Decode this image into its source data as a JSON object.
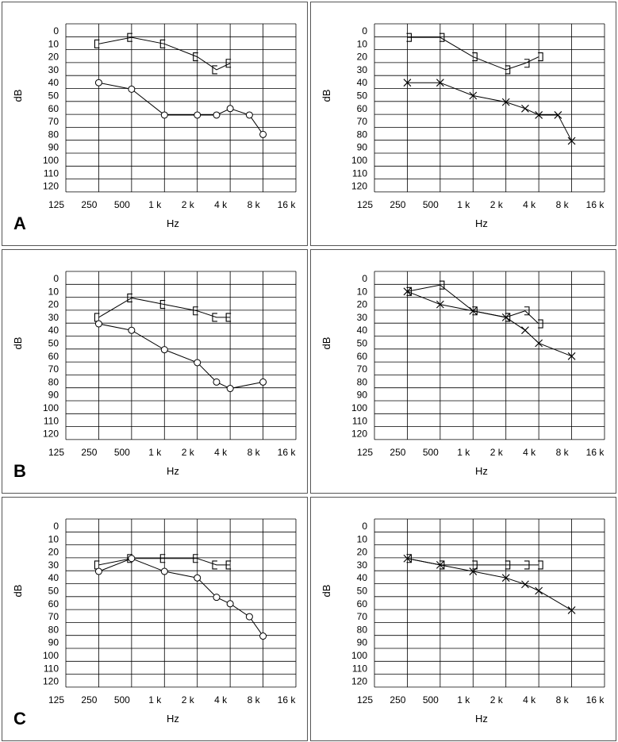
{
  "rows": [
    {
      "label": "A"
    },
    {
      "label": "B"
    },
    {
      "label": "C"
    }
  ],
  "chart_data": [
    {
      "type": "line",
      "xlabel": "Hz",
      "ylabel": "dB",
      "x_ticks": [
        "125",
        "250",
        "500",
        "1 k",
        "2 k",
        "4 k",
        "8 k",
        "16 k"
      ],
      "y_ticks": [
        "0",
        "10",
        "20",
        "30",
        "40",
        "50",
        "60",
        "70",
        "80",
        "90",
        "100",
        "110",
        "120"
      ],
      "y_range": [
        0,
        120
      ],
      "y_inverted": true,
      "x_scale": "log",
      "series": [
        {
          "marker": "bracket-left",
          "x": [
            250,
            500,
            1000,
            2000,
            3000,
            4000
          ],
          "y": [
            10,
            5,
            10,
            20,
            30,
            25
          ]
        },
        {
          "marker": "circle",
          "x": [
            250,
            500,
            1000,
            2000,
            3000,
            4000,
            6000,
            8000
          ],
          "y": [
            40,
            45,
            65,
            65,
            65,
            60,
            65,
            80
          ]
        }
      ]
    },
    {
      "type": "line",
      "xlabel": "Hz",
      "ylabel": "dB",
      "x_ticks": [
        "125",
        "250",
        "500",
        "1 k",
        "2 k",
        "4 k",
        "8 k",
        "16 k"
      ],
      "y_ticks": [
        "0",
        "10",
        "20",
        "30",
        "40",
        "50",
        "60",
        "70",
        "80",
        "90",
        "100",
        "110",
        "120"
      ],
      "y_range": [
        0,
        120
      ],
      "y_inverted": true,
      "x_scale": "log",
      "series": [
        {
          "marker": "bracket-right",
          "x": [
            250,
            500,
            1000,
            2000,
            3000,
            4000
          ],
          "y": [
            5,
            5,
            20,
            30,
            25,
            20
          ]
        },
        {
          "marker": "cross",
          "x": [
            250,
            500,
            1000,
            2000,
            3000,
            4000,
            6000,
            8000
          ],
          "y": [
            40,
            40,
            50,
            55,
            60,
            65,
            65,
            85
          ]
        }
      ]
    },
    {
      "type": "line",
      "xlabel": "Hz",
      "ylabel": "dB",
      "x_ticks": [
        "125",
        "250",
        "500",
        "1 k",
        "2 k",
        "4 k",
        "8 k",
        "16 k"
      ],
      "y_ticks": [
        "0",
        "10",
        "20",
        "30",
        "40",
        "50",
        "60",
        "70",
        "80",
        "90",
        "100",
        "110",
        "120"
      ],
      "y_range": [
        0,
        120
      ],
      "y_inverted": true,
      "x_scale": "log",
      "series": [
        {
          "marker": "bracket-left",
          "x": [
            250,
            500,
            1000,
            2000,
            3000,
            4000
          ],
          "y": [
            30,
            15,
            20,
            25,
            30,
            30
          ]
        },
        {
          "marker": "circle",
          "x": [
            250,
            500,
            1000,
            2000,
            3000,
            4000,
            8000
          ],
          "y": [
            35,
            40,
            55,
            65,
            80,
            85,
            80
          ]
        }
      ]
    },
    {
      "type": "line",
      "xlabel": "Hz",
      "ylabel": "dB",
      "x_ticks": [
        "125",
        "250",
        "500",
        "1 k",
        "2 k",
        "4 k",
        "8 k",
        "16 k"
      ],
      "y_ticks": [
        "0",
        "10",
        "20",
        "30",
        "40",
        "50",
        "60",
        "70",
        "80",
        "90",
        "100",
        "110",
        "120"
      ],
      "y_range": [
        0,
        120
      ],
      "y_inverted": true,
      "x_scale": "log",
      "series": [
        {
          "marker": "bracket-right",
          "x": [
            250,
            500,
            1000,
            2000,
            3000,
            4000
          ],
          "y": [
            10,
            5,
            25,
            30,
            25,
            35
          ]
        },
        {
          "marker": "cross",
          "x": [
            250,
            500,
            1000,
            2000,
            3000,
            4000,
            8000
          ],
          "y": [
            10,
            20,
            25,
            30,
            40,
            50,
            60
          ]
        }
      ]
    },
    {
      "type": "line",
      "xlabel": "Hz",
      "ylabel": "dB",
      "x_ticks": [
        "125",
        "250",
        "500",
        "1 k",
        "2 k",
        "4 k",
        "8 k",
        "16 k"
      ],
      "y_ticks": [
        "0",
        "10",
        "20",
        "30",
        "40",
        "50",
        "60",
        "70",
        "80",
        "90",
        "100",
        "110",
        "120"
      ],
      "y_range": [
        0,
        120
      ],
      "y_inverted": true,
      "x_scale": "log",
      "series": [
        {
          "marker": "bracket-left",
          "x": [
            250,
            500,
            1000,
            2000,
            3000,
            4000
          ],
          "y": [
            30,
            25,
            25,
            25,
            30,
            30
          ]
        },
        {
          "marker": "circle",
          "x": [
            250,
            500,
            1000,
            2000,
            3000,
            4000,
            6000,
            8000
          ],
          "y": [
            35,
            25,
            35,
            40,
            55,
            60,
            70,
            85
          ]
        }
      ]
    },
    {
      "type": "line",
      "xlabel": "Hz",
      "ylabel": "dB",
      "x_ticks": [
        "125",
        "250",
        "500",
        "1 k",
        "2 k",
        "4 k",
        "8 k",
        "16 k"
      ],
      "y_ticks": [
        "0",
        "10",
        "20",
        "30",
        "40",
        "50",
        "60",
        "70",
        "80",
        "90",
        "100",
        "110",
        "120"
      ],
      "y_range": [
        0,
        120
      ],
      "y_inverted": true,
      "x_scale": "log",
      "series": [
        {
          "marker": "bracket-right",
          "x": [
            250,
            500,
            1000,
            2000,
            3000,
            4000
          ],
          "y": [
            25,
            30,
            30,
            30,
            30,
            30
          ]
        },
        {
          "marker": "cross",
          "x": [
            250,
            500,
            1000,
            2000,
            3000,
            4000,
            8000
          ],
          "y": [
            25,
            30,
            35,
            40,
            45,
            50,
            65
          ]
        }
      ]
    }
  ]
}
